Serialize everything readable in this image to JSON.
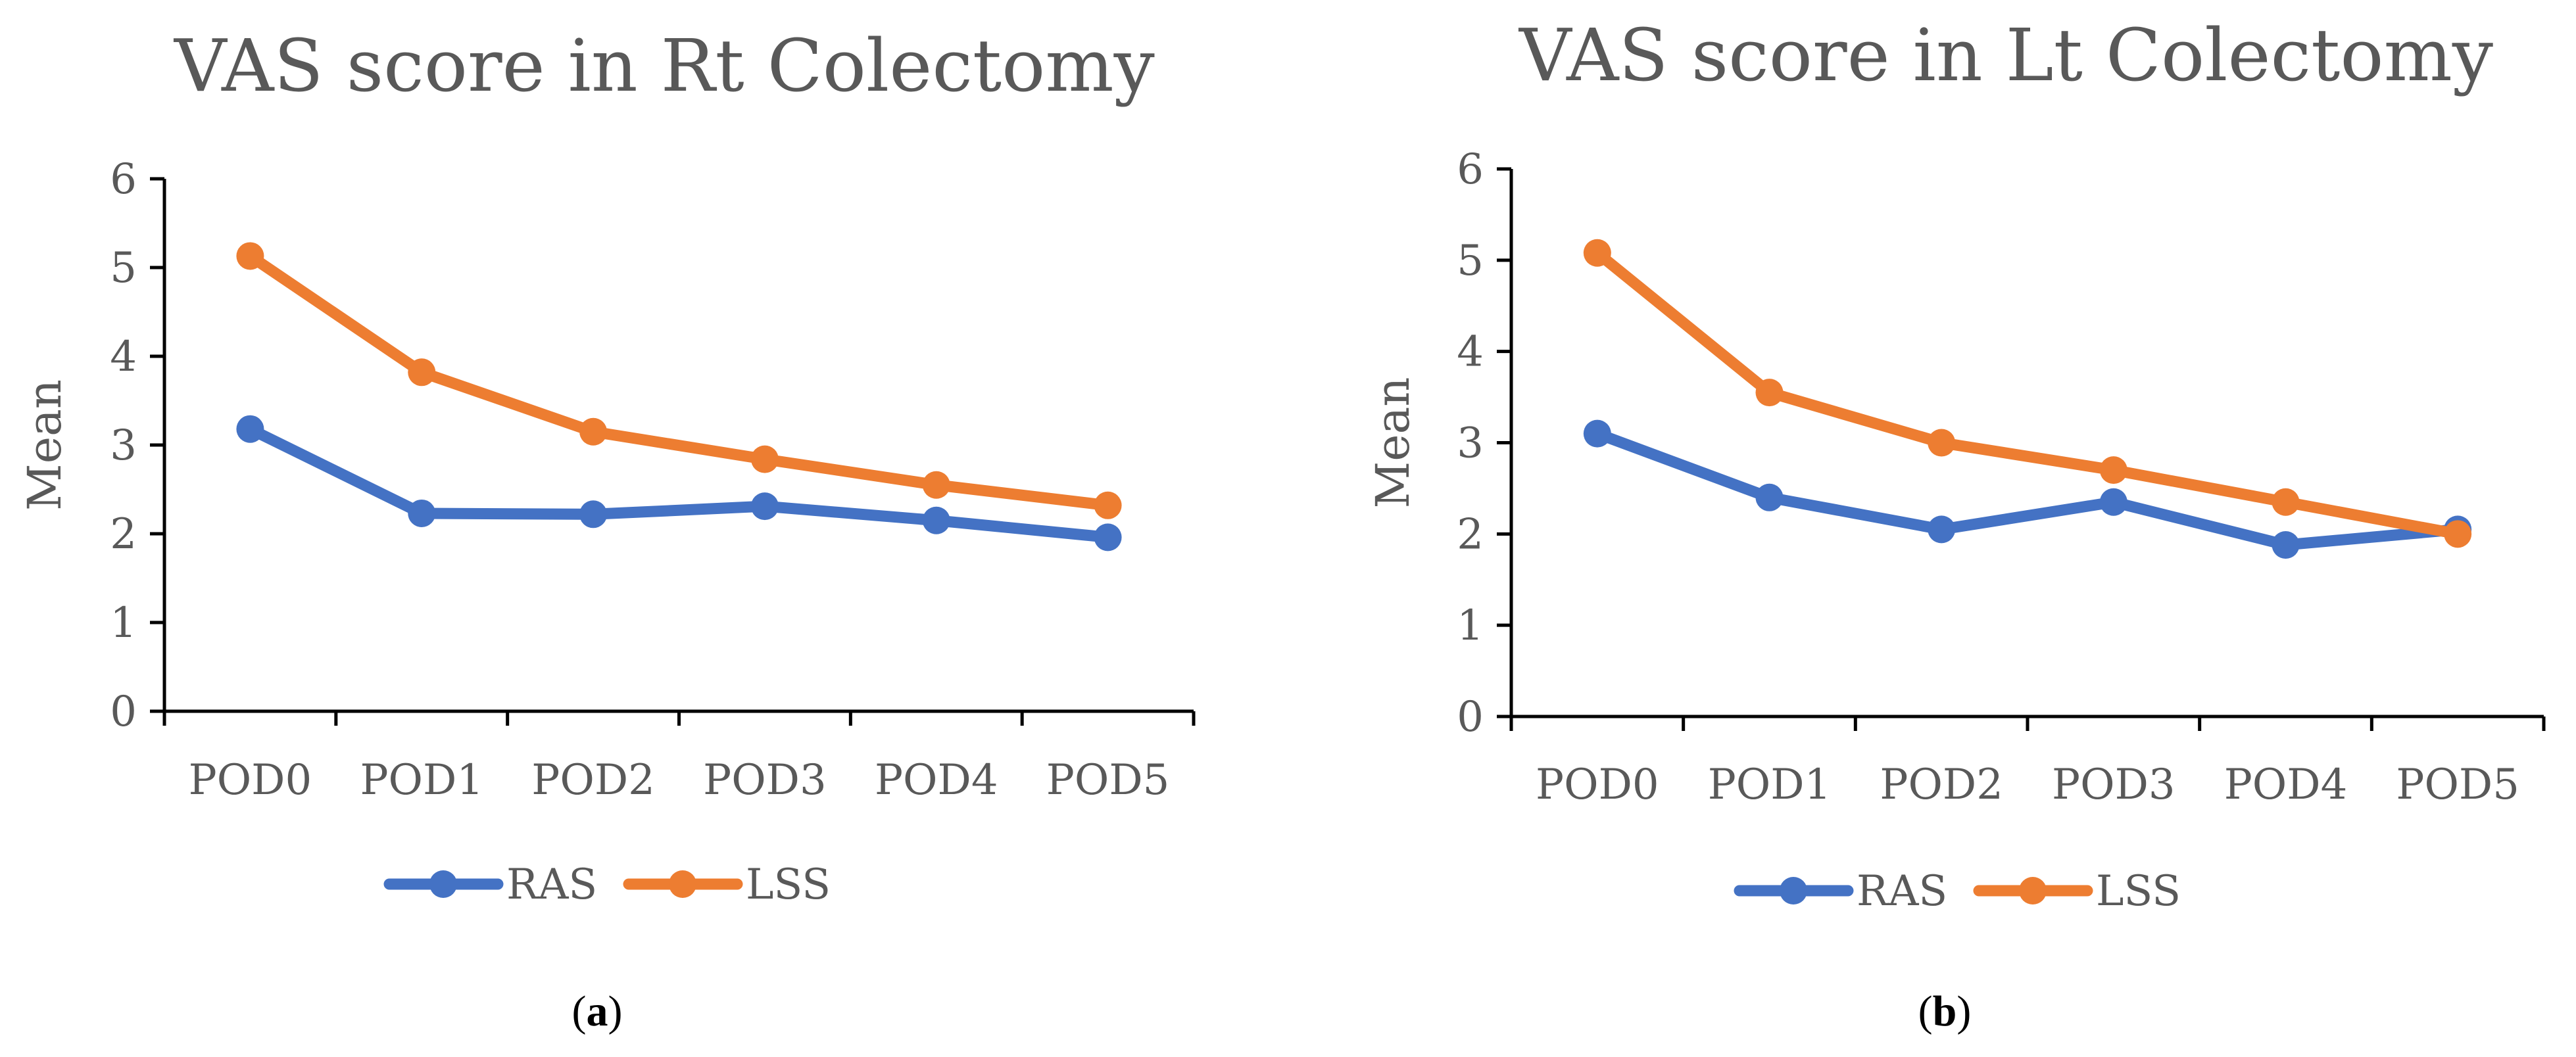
{
  "chart_data": [
    {
      "type": "line",
      "title": "VAS score in Rt Colectomy",
      "ylabel": "Mean",
      "xlabel": "",
      "ylim": [
        0,
        6
      ],
      "yticks": [
        0,
        1,
        2,
        3,
        4,
        5,
        6
      ],
      "categories": [
        "POD0",
        "POD1",
        "POD2",
        "POD3",
        "POD4",
        "POD5"
      ],
      "series": [
        {
          "name": "RAS",
          "color": "#4472C4",
          "values": [
            3.18,
            2.23,
            2.22,
            2.31,
            2.15,
            1.96
          ]
        },
        {
          "name": "LSS",
          "color": "#ED7D31",
          "values": [
            5.13,
            3.82,
            3.15,
            2.84,
            2.55,
            2.32
          ]
        }
      ],
      "legend": "bottom",
      "caption_label": "a"
    },
    {
      "type": "line",
      "title": "VAS score in Lt Colectomy",
      "ylabel": "Mean",
      "xlabel": "",
      "ylim": [
        0,
        6
      ],
      "yticks": [
        0,
        1,
        2,
        3,
        4,
        5,
        6
      ],
      "categories": [
        "POD0",
        "POD1",
        "POD2",
        "POD3",
        "POD4",
        "POD5"
      ],
      "series": [
        {
          "name": "RAS",
          "color": "#4472C4",
          "values": [
            3.1,
            2.4,
            2.05,
            2.35,
            1.88,
            2.05
          ]
        },
        {
          "name": "LSS",
          "color": "#ED7D31",
          "values": [
            5.08,
            3.55,
            3.0,
            2.7,
            2.35,
            2.0
          ]
        }
      ],
      "legend": "bottom",
      "caption_label": "b"
    }
  ]
}
